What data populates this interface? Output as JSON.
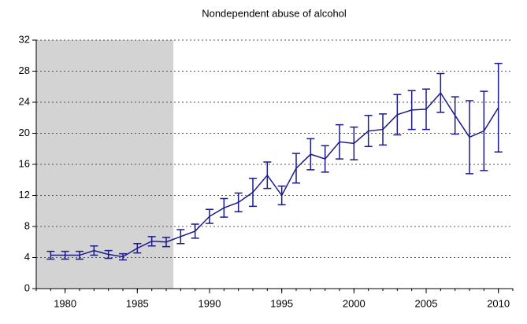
{
  "chart_data": {
    "type": "line",
    "title": "Nondependent abuse of alcohol",
    "x": [
      1979,
      1980,
      1981,
      1982,
      1983,
      1984,
      1985,
      1986,
      1987,
      1988,
      1989,
      1990,
      1991,
      1992,
      1993,
      1994,
      1995,
      1996,
      1997,
      1998,
      1999,
      2000,
      2001,
      2002,
      2003,
      2004,
      2005,
      2006,
      2007,
      2008,
      2009,
      2010
    ],
    "series": [
      {
        "color": "#1a1a8c",
        "values": [
          4.3,
          4.3,
          4.3,
          4.9,
          4.4,
          4.1,
          5.2,
          6.1,
          6.0,
          6.7,
          7.4,
          9.3,
          10.4,
          11.1,
          12.4,
          14.6,
          12.0,
          15.5,
          17.3,
          16.7,
          18.9,
          18.7,
          20.3,
          20.5,
          22.4,
          23.0,
          23.1,
          25.2,
          22.3,
          19.5,
          20.3,
          23.3
        ],
        "errors": [
          0.5,
          0.5,
          0.5,
          0.6,
          0.5,
          0.4,
          0.6,
          0.6,
          0.6,
          0.9,
          0.9,
          0.9,
          1.2,
          1.2,
          1.8,
          1.7,
          1.2,
          1.9,
          2.0,
          1.7,
          2.2,
          2.1,
          2.0,
          2.0,
          2.6,
          2.5,
          2.6,
          2.5,
          2.4,
          4.7,
          5.1,
          5.7
        ]
      }
    ],
    "shaded_x": [
      1978,
      1987.5
    ],
    "shade_color": "#d3d3d3",
    "xlim": [
      1978,
      2011
    ],
    "xticks": [
      1980,
      1985,
      1990,
      1995,
      2000,
      2005,
      2010
    ],
    "ylim": [
      0,
      32
    ],
    "yticks": [
      0,
      4,
      8,
      12,
      16,
      20,
      24,
      28,
      32
    ],
    "grid": true
  }
}
